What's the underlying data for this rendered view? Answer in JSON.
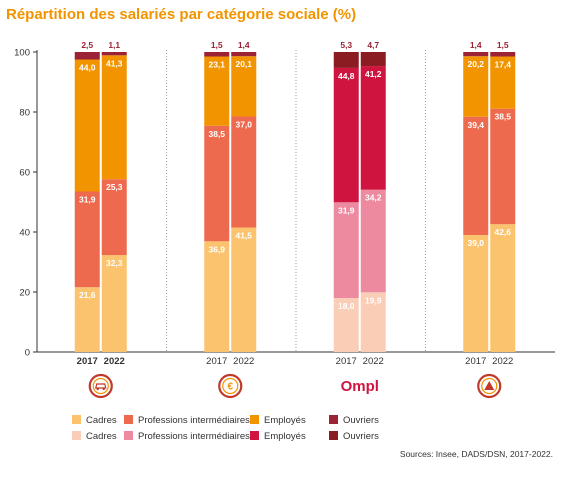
{
  "title": "Répartition des salariés par catégorie sociale (%)",
  "source": "Sources: Insee, DADS/DSN, 2017-2022.",
  "colors": {
    "cadres": "#fbc36d",
    "professions": "#ee6a4f",
    "employes": "#f29400",
    "ouvriers": "#9b2335",
    "cadres_alt": "#f9cdb6",
    "professions_alt": "#ee8aa0",
    "employes_alt": "#d01440",
    "ouvriers_alt": "#8a1c22",
    "label_light": "#ffffff",
    "label_dark": "#9b2335",
    "icon_ring_outer": "#c0392b",
    "icon_ring_inner": "#f29400",
    "ompl_logo": "#d01440",
    "axis": "#333333",
    "grid": "#8c8c8c"
  },
  "legend": [
    {
      "items": [
        {
          "label": "Cadres",
          "color_key": "cadres"
        },
        {
          "label": "Professions intermédiaires",
          "color_key": "professions"
        },
        {
          "label": "Employés",
          "color_key": "employes"
        },
        {
          "label": "Ouvriers",
          "color_key": "ouvriers"
        }
      ]
    },
    {
      "items": [
        {
          "label": "Cadres",
          "color_key": "cadres_alt"
        },
        {
          "label": "Professions intermédiaires",
          "color_key": "professions_alt"
        },
        {
          "label": "Employés",
          "color_key": "employes_alt"
        },
        {
          "label": "Ouvriers",
          "color_key": "ouvriers_alt"
        }
      ]
    }
  ],
  "icons": [
    {
      "name": "car-icon"
    },
    {
      "name": "coin-icon"
    },
    {
      "name": "ompl-logo",
      "text": "Ompl"
    },
    {
      "name": "warning-icon"
    }
  ],
  "chart_data": {
    "type": "bar",
    "stacked": true,
    "ylim": [
      0,
      100
    ],
    "yticks": [
      0,
      20,
      40,
      60,
      80,
      100
    ],
    "grid": "vertical separators between groups",
    "groups": [
      {
        "icon": "car-icon",
        "bold_years": true,
        "bars": [
          {
            "year": "2017",
            "segments": [
              {
                "category": "Cadres",
                "value": 21.6,
                "label": "21,6",
                "color_key": "cadres"
              },
              {
                "category": "Professions intermédiaires",
                "value": 31.9,
                "label": "31,9",
                "color_key": "professions"
              },
              {
                "category": "Employés",
                "value": 44.0,
                "label": "44,0",
                "color_key": "employes"
              },
              {
                "category": "Ouvriers",
                "value": 2.5,
                "label": "2,5",
                "color_key": "ouvriers"
              }
            ]
          },
          {
            "year": "2022",
            "segments": [
              {
                "category": "Cadres",
                "value": 32.3,
                "label": "32,3",
                "color_key": "cadres"
              },
              {
                "category": "Professions intermédiaires",
                "value": 25.3,
                "label": "25,3",
                "color_key": "professions"
              },
              {
                "category": "Employés",
                "value": 41.3,
                "label": "41,3",
                "color_key": "employes"
              },
              {
                "category": "Ouvriers",
                "value": 1.1,
                "label": "1,1",
                "color_key": "ouvriers"
              }
            ]
          }
        ]
      },
      {
        "icon": "coin-icon",
        "bold_years": false,
        "bars": [
          {
            "year": "2017",
            "segments": [
              {
                "category": "Cadres",
                "value": 36.9,
                "label": "36,9",
                "color_key": "cadres"
              },
              {
                "category": "Professions intermédiaires",
                "value": 38.5,
                "label": "38,5",
                "color_key": "professions"
              },
              {
                "category": "Employés",
                "value": 23.1,
                "label": "23,1",
                "color_key": "employes"
              },
              {
                "category": "Ouvriers",
                "value": 1.5,
                "label": "1,5",
                "color_key": "ouvriers"
              }
            ]
          },
          {
            "year": "2022",
            "segments": [
              {
                "category": "Cadres",
                "value": 41.5,
                "label": "41,5",
                "color_key": "cadres"
              },
              {
                "category": "Professions intermédiaires",
                "value": 37.0,
                "label": "37,0",
                "color_key": "professions"
              },
              {
                "category": "Employés",
                "value": 20.1,
                "label": "20,1",
                "color_key": "employes"
              },
              {
                "category": "Ouvriers",
                "value": 1.4,
                "label": "1,4",
                "color_key": "ouvriers"
              }
            ]
          }
        ]
      },
      {
        "icon": "ompl-logo",
        "bold_years": false,
        "bars": [
          {
            "year": "2017",
            "segments": [
              {
                "category": "Cadres",
                "value": 18.0,
                "label": "18,0",
                "color_key": "cadres_alt"
              },
              {
                "category": "Professions intermédiaires",
                "value": 31.9,
                "label": "31,9",
                "color_key": "professions_alt"
              },
              {
                "category": "Employés",
                "value": 44.8,
                "label": "44,8",
                "color_key": "employes_alt"
              },
              {
                "category": "Ouvriers",
                "value": 5.3,
                "label": "5,3",
                "color_key": "ouvriers_alt"
              }
            ]
          },
          {
            "year": "2022",
            "segments": [
              {
                "category": "Cadres",
                "value": 19.9,
                "label": "19,9",
                "color_key": "cadres_alt"
              },
              {
                "category": "Professions intermédiaires",
                "value": 34.2,
                "label": "34,2",
                "color_key": "professions_alt"
              },
              {
                "category": "Employés",
                "value": 41.2,
                "label": "41,2",
                "color_key": "employes_alt"
              },
              {
                "category": "Ouvriers",
                "value": 4.7,
                "label": "4,7",
                "color_key": "ouvriers_alt"
              }
            ]
          }
        ]
      },
      {
        "icon": "warning-icon",
        "bold_years": false,
        "bars": [
          {
            "year": "2017",
            "segments": [
              {
                "category": "Cadres",
                "value": 39.0,
                "label": "39,0",
                "color_key": "cadres"
              },
              {
                "category": "Professions intermédiaires",
                "value": 39.4,
                "label": "39,4",
                "color_key": "professions"
              },
              {
                "category": "Employés",
                "value": 20.2,
                "label": "20,2",
                "color_key": "employes"
              },
              {
                "category": "Ouvriers",
                "value": 1.4,
                "label": "1,4",
                "color_key": "ouvriers"
              }
            ]
          },
          {
            "year": "2022",
            "segments": [
              {
                "category": "Cadres",
                "value": 42.6,
                "label": "42,6",
                "color_key": "cadres"
              },
              {
                "category": "Professions intermédiaires",
                "value": 38.5,
                "label": "38,5",
                "color_key": "professions"
              },
              {
                "category": "Employés",
                "value": 17.4,
                "label": "17,4",
                "color_key": "employes"
              },
              {
                "category": "Ouvriers",
                "value": 1.5,
                "label": "1,5",
                "color_key": "ouvriers"
              }
            ]
          }
        ]
      }
    ]
  }
}
